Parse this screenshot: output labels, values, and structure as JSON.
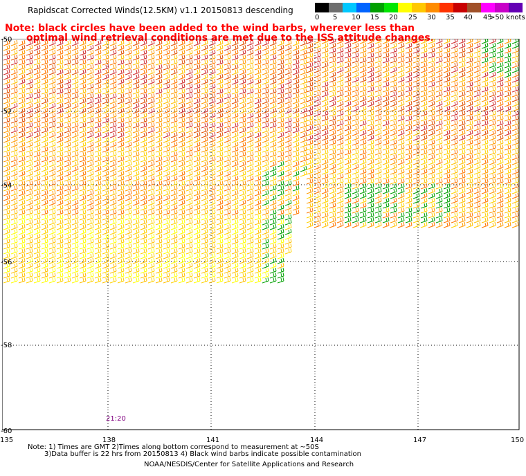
{
  "title": "Rapidscat Corrected Winds(12.5KM) v1.1 20150813 descending",
  "note": {
    "line1": "Note: black circles have been added to the wind barbs, wherever less than",
    "line2": "optimal wind retrieval conditions are met due to the ISS attitude changes."
  },
  "legend": {
    "colors": [
      "#000000",
      "#6e6e6e",
      "#00c8ff",
      "#0064ff",
      "#00a000",
      "#00e600",
      "#ffff00",
      "#ffc800",
      "#ff8c00",
      "#ff3200",
      "#c80000",
      "#a05028",
      "#ff00ff",
      "#c800c8",
      "#6400b4"
    ],
    "labels": [
      "0",
      "5",
      "10",
      "15",
      "20",
      "25",
      "30",
      "35",
      "40",
      "45",
      ">50 knots"
    ]
  },
  "axes": {
    "y_labels": [
      "-50",
      "-52",
      "-54",
      "-56",
      "-58",
      "-60"
    ],
    "x_labels": [
      "135",
      "138",
      "141",
      "144",
      "147",
      "150"
    ]
  },
  "time_label": "21:20",
  "footer": {
    "line1": "Note: 1) Times are GMT 2)Times along bottom correspond to measurement at ~50S",
    "line2": "3)Data buffer is 22 hrs from 20150813 4) Black wind barbs indicate possible contamination",
    "credit": "NOAA/NESDIS/Center for Satellite Applications and Research"
  }
}
